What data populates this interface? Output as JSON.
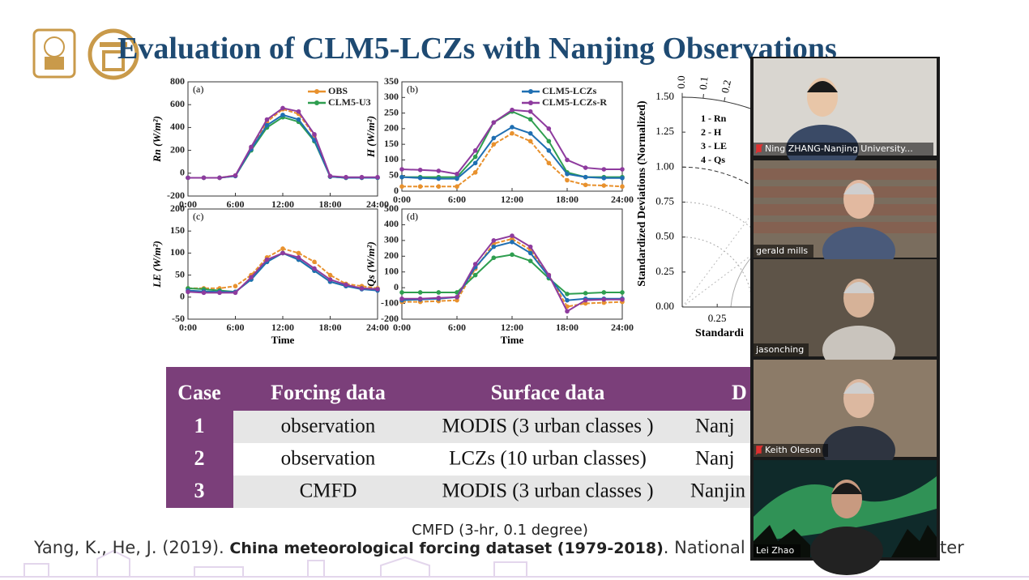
{
  "slide": {
    "title": "Evaluation of CLM5-LCZs with Nanjing Observations",
    "panels": [
      {
        "type": "line",
        "label": "(a)",
        "ylabel": "Rn (W/m²)",
        "x": [
          0,
          2,
          4,
          6,
          8,
          10,
          12,
          14,
          16,
          18,
          20,
          22,
          24
        ],
        "xlim": [
          0,
          24
        ],
        "xticks": [
          {
            "value": 0,
            "label": "0:00"
          },
          {
            "value": 6,
            "label": "6:00"
          },
          {
            "value": 12,
            "label": "12:00"
          },
          {
            "value": 18,
            "label": "18:00"
          },
          {
            "value": 24,
            "label": "24:00"
          }
        ],
        "ylim": [
          -200,
          800
        ],
        "yticks": [
          -200,
          0,
          200,
          400,
          600,
          800
        ],
        "series": [
          {
            "name": "OBS",
            "color": "#e8912d",
            "values": [
              -40,
              -40,
              -40,
              -20,
              220,
              450,
              560,
              520,
              330,
              -30,
              -40,
              -40,
              -40
            ]
          },
          {
            "name": "CLM5-U3",
            "color": "#2e9e4f",
            "values": [
              -40,
              -40,
              -40,
              -25,
              200,
              400,
              490,
              450,
              280,
              -30,
              -40,
              -40,
              -40
            ]
          },
          {
            "color": "#1f6fb2",
            "values": [
              -40,
              -40,
              -40,
              -25,
              210,
              420,
              510,
              470,
              290,
              -30,
              -40,
              -40,
              -40
            ]
          },
          {
            "color": "#8e3b9e",
            "values": [
              -40,
              -40,
              -40,
              -20,
              230,
              470,
              570,
              540,
              340,
              -25,
              -35,
              -35,
              -35
            ]
          }
        ]
      },
      {
        "type": "line",
        "label": "(b)",
        "ylabel": "H (W/m²)",
        "x": [
          0,
          2,
          4,
          6,
          8,
          10,
          12,
          14,
          16,
          18,
          20,
          22,
          24
        ],
        "xlim": [
          0,
          24
        ],
        "xticks": [
          {
            "value": 0,
            "label": "0:00"
          },
          {
            "value": 6,
            "label": "6:00"
          },
          {
            "value": 12,
            "label": "12:00"
          },
          {
            "value": 18,
            "label": "18:00"
          },
          {
            "value": 24,
            "label": "24:00"
          }
        ],
        "ylim": [
          0,
          350
        ],
        "yticks": [
          0,
          50,
          100,
          150,
          200,
          250,
          300,
          350
        ],
        "series": [
          {
            "color": "#e8912d",
            "values": [
              15,
              15,
              15,
              15,
              60,
              150,
              185,
              160,
              90,
              35,
              20,
              18,
              15
            ]
          },
          {
            "color": "#2e9e4f",
            "values": [
              45,
              45,
              45,
              45,
              110,
              220,
              255,
              230,
              160,
              60,
              45,
              45,
              45
            ]
          },
          {
            "name": "CLM5-LCZs",
            "color": "#1f6fb2",
            "values": [
              45,
              42,
              40,
              40,
              90,
              170,
              205,
              185,
              130,
              55,
              45,
              42,
              42
            ]
          },
          {
            "name": "CLM5-LCZs-R",
            "color": "#8e3b9e",
            "values": [
              70,
              68,
              65,
              55,
              130,
              220,
              260,
              255,
              200,
              100,
              75,
              70,
              70
            ]
          }
        ]
      },
      {
        "type": "line",
        "label": "(c)",
        "ylabel": "LE (W/m²)",
        "xlabel": "Time",
        "x": [
          0,
          2,
          4,
          6,
          8,
          10,
          12,
          14,
          16,
          18,
          20,
          22,
          24
        ],
        "xlim": [
          0,
          24
        ],
        "xticks": [
          {
            "value": 0,
            "label": "0:00"
          },
          {
            "value": 6,
            "label": "6:00"
          },
          {
            "value": 12,
            "label": "12:00"
          },
          {
            "value": 18,
            "label": "18:00"
          },
          {
            "value": 24,
            "label": "24:00"
          }
        ],
        "ylim": [
          -50,
          200
        ],
        "yticks": [
          -50,
          0,
          50,
          100,
          150,
          200
        ],
        "series": [
          {
            "color": "#e8912d",
            "values": [
              20,
              20,
              20,
              25,
              50,
              90,
              110,
              100,
              80,
              50,
              30,
              25,
              20
            ]
          },
          {
            "color": "#2e9e4f",
            "values": [
              20,
              18,
              15,
              12,
              40,
              80,
              100,
              85,
              60,
              35,
              25,
              20,
              18
            ]
          },
          {
            "color": "#1f6fb2",
            "values": [
              15,
              13,
              12,
              12,
              40,
              80,
              100,
              85,
              60,
              35,
              25,
              18,
              15
            ]
          },
          {
            "color": "#8e3b9e",
            "values": [
              12,
              10,
              10,
              10,
              45,
              85,
              100,
              90,
              65,
              40,
              28,
              20,
              18
            ]
          }
        ]
      },
      {
        "type": "line",
        "label": "(d)",
        "ylabel": "Qs (W/m²)",
        "xlabel": "Time",
        "x": [
          0,
          2,
          4,
          6,
          8,
          10,
          12,
          14,
          16,
          18,
          20,
          22,
          24
        ],
        "xlim": [
          0,
          24
        ],
        "xticks": [
          {
            "value": 0,
            "label": "0:00"
          },
          {
            "value": 6,
            "label": "6:00"
          },
          {
            "value": 12,
            "label": "12:00"
          },
          {
            "value": 18,
            "label": "18:00"
          },
          {
            "value": 24,
            "label": "24:00"
          }
        ],
        "ylim": [
          -200,
          500
        ],
        "yticks": [
          -200,
          -100,
          0,
          100,
          200,
          300,
          400,
          500
        ],
        "series": [
          {
            "color": "#e8912d",
            "values": [
              -90,
              -90,
              -85,
              -80,
              120,
              280,
              310,
              240,
              80,
              -120,
              -100,
              -95,
              -90
            ]
          },
          {
            "color": "#2e9e4f",
            "values": [
              -30,
              -30,
              -30,
              -30,
              80,
              190,
              210,
              170,
              60,
              -40,
              -35,
              -30,
              -30
            ]
          },
          {
            "color": "#1f6fb2",
            "values": [
              -80,
              -75,
              -70,
              -60,
              130,
              260,
              290,
              220,
              70,
              -80,
              -70,
              -70,
              -70
            ]
          },
          {
            "color": "#8e3b9e",
            "values": [
              -70,
              -70,
              -65,
              -60,
              150,
              300,
              330,
              260,
              80,
              -150,
              -80,
              -75,
              -75
            ]
          }
        ]
      }
    ],
    "taylor": {
      "ylabel": "Standardized Deviations (Normalized)",
      "xlabel": "Standardi",
      "yticks": [
        {
          "value": 1.5,
          "label": "1.50"
        },
        {
          "value": 1.25,
          "label": "1.25"
        },
        {
          "value": 1,
          "label": "1.00"
        },
        {
          "value": 0.75,
          "label": "0.75"
        },
        {
          "value": 0.5,
          "label": "0.50"
        },
        {
          "value": 0.25,
          "label": "0.25"
        },
        {
          "value": 0,
          "label": "0.00"
        }
      ],
      "xticks": [
        {
          "value": 0.25,
          "label": "0.25"
        }
      ],
      "corr_ticks": [
        {
          "value": 0,
          "label": "0.0"
        },
        {
          "value": 0.1,
          "label": "0.1"
        },
        {
          "value": 0.2,
          "label": "0.2"
        }
      ],
      "legend": [
        "1 - Rn",
        "2 - H",
        "3 - LE",
        "4 - Qs"
      ]
    },
    "table": {
      "header": [
        "Case",
        "Forcing data",
        "Surface data",
        "D"
      ],
      "rows": [
        [
          "1",
          "observation",
          "MODIS (3 urban classes )",
          "Nanj"
        ],
        [
          "2",
          "observation",
          "LCZs (10 urban classes)",
          "Nanj"
        ],
        [
          "3",
          "CMFD",
          "MODIS (3 urban classes )",
          "Nanjin"
        ]
      ]
    },
    "note": "CMFD (3-hr, 0.1 degree)",
    "citation": [
      "Yang, K., He, J. (2019). ",
      "China meteorological forcing dataset (1979-2018)",
      ". National Tibe",
      "ter"
    ]
  },
  "participants": [
    "Ning ZHANG-Nanjing University...",
    "gerald mills",
    "jasonching",
    "Keith Oleson",
    "Lei Zhao"
  ]
}
